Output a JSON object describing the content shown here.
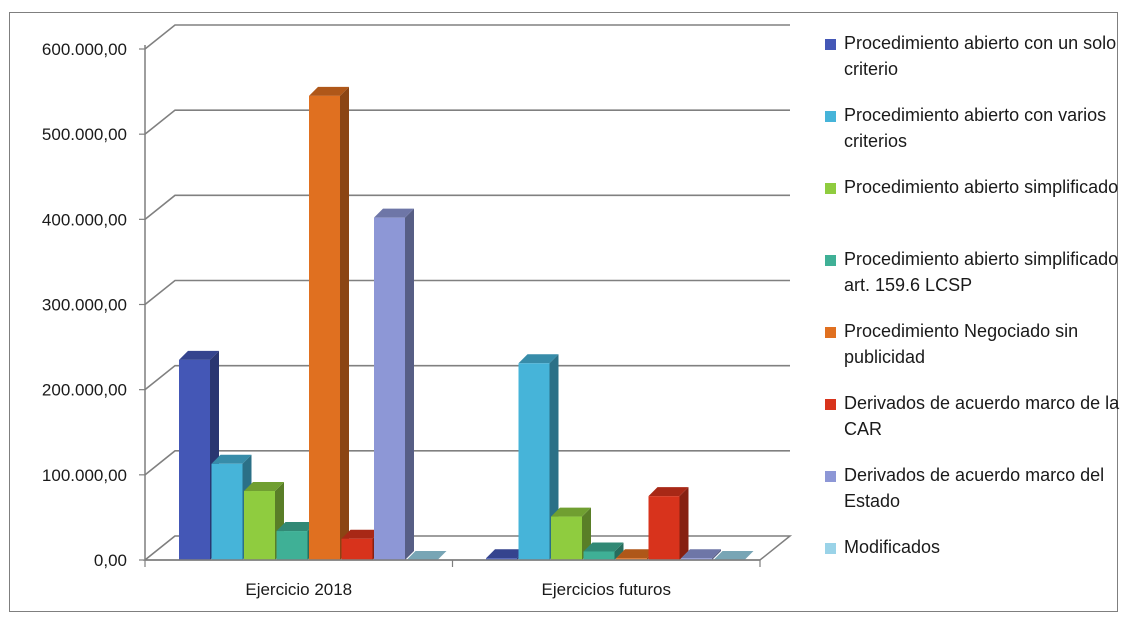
{
  "chart_data": {
    "type": "bar",
    "title": "",
    "xlabel": "",
    "ylabel": "",
    "ylim": [
      0,
      600000
    ],
    "y_ticks": [
      "0,00",
      "100.000,00",
      "200.000,00",
      "300.000,00",
      "400.000,00",
      "500.000,00",
      "600.000,00"
    ],
    "categories": [
      "Ejercicio 2018",
      "Ejercicios futuros"
    ],
    "grid": true,
    "legend_position": "right",
    "series": [
      {
        "name": "Procedimiento abierto con un solo criterio",
        "color": "#4457b6",
        "values": [
          235000,
          2000
        ]
      },
      {
        "name": "Procedimiento abierto con varios criterios",
        "color": "#46b4d9",
        "values": [
          113000,
          231000
        ]
      },
      {
        "name": "Procedimiento abierto simplificado",
        "color": "#8fcc3f",
        "values": [
          81000,
          51000
        ]
      },
      {
        "name": "Procedimiento abierto simplificado art. 159.6 LCSP",
        "color": "#3fb096",
        "values": [
          34000,
          10000
        ]
      },
      {
        "name": "Procedimiento Negociado sin publicidad",
        "color": "#e07020",
        "values": [
          545000,
          2000
        ]
      },
      {
        "name": "Derivados de acuerdo marco de la CAR",
        "color": "#d8331c",
        "values": [
          25000,
          75000
        ]
      },
      {
        "name": "Derivados de acuerdo marco del Estado",
        "color": "#8d97d6",
        "values": [
          402000,
          2000
        ]
      },
      {
        "name": "Modificados",
        "color": "#9ad3e8",
        "values": [
          0,
          0
        ]
      }
    ]
  }
}
